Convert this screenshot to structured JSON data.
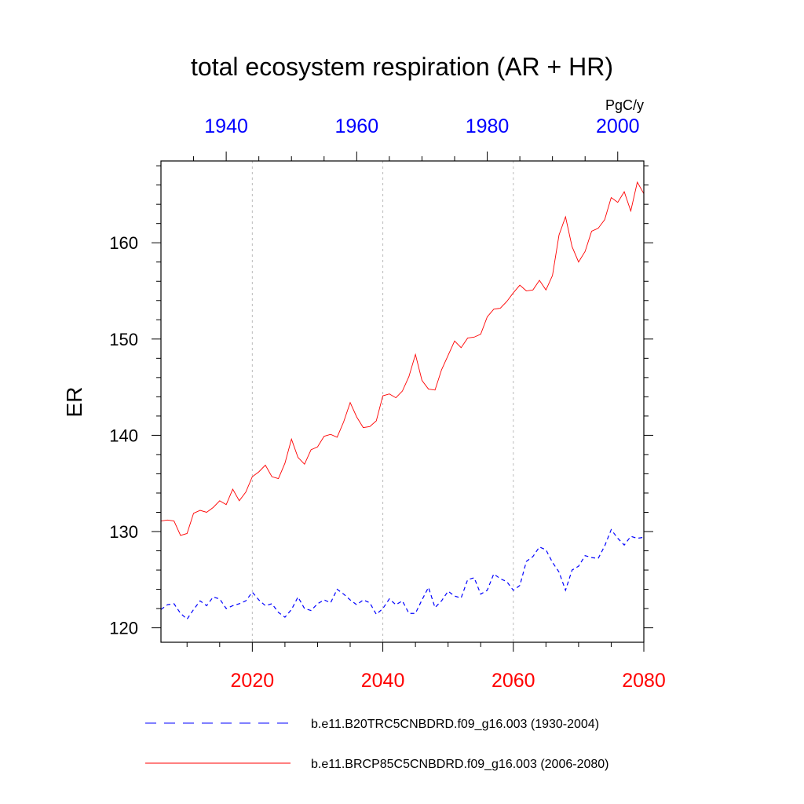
{
  "chart_data": {
    "type": "line",
    "title": "total ecosystem respiration (AR + HR)",
    "ylabel": "ER",
    "units": "PgC/y",
    "ylim": [
      118.5,
      168.5
    ],
    "yticks": [
      120,
      130,
      140,
      150,
      160
    ],
    "bottom_axis": {
      "color": "#ff0000",
      "range": [
        2006,
        2080
      ],
      "ticks": [
        2020,
        2040,
        2060,
        2080
      ]
    },
    "top_axis": {
      "color": "#0000ff",
      "range": [
        1930,
        2004
      ],
      "ticks": [
        1940,
        1960,
        1980,
        2000
      ]
    },
    "grid": {
      "vertical_dotted": true,
      "at_bottom_years": [
        2020,
        2040,
        2060
      ]
    },
    "legend_position": "bottom",
    "series": [
      {
        "name": "b.e11.B20TRC5CNBDRD.f09_g16.003 (1930-2004)",
        "axis": "top",
        "color": "#0000ff",
        "dash": "dashed",
        "x_start": 1930,
        "values": [
          121.9,
          122.4,
          122.5,
          121.5,
          120.9,
          121.9,
          122.8,
          122.3,
          123.2,
          123.0,
          122.0,
          122.3,
          122.5,
          122.8,
          123.7,
          122.9,
          122.3,
          122.5,
          121.6,
          121.1,
          121.9,
          123.2,
          122.0,
          121.8,
          122.5,
          122.9,
          122.6,
          124.0,
          123.5,
          122.9,
          122.4,
          122.9,
          122.6,
          121.4,
          122.0,
          123.0,
          122.4,
          122.8,
          121.5,
          121.5,
          122.9,
          124.2,
          122.1,
          122.8,
          123.8,
          123.3,
          123.1,
          125.0,
          125.2,
          123.5,
          123.9,
          125.6,
          125.1,
          124.8,
          123.9,
          124.4,
          126.9,
          127.4,
          128.4,
          128.1,
          126.8,
          125.8,
          123.9,
          126.0,
          126.4,
          127.5,
          127.3,
          127.2,
          128.5,
          130.2,
          129.3,
          128.6,
          129.5,
          129.3,
          129.4
        ]
      },
      {
        "name": "b.e11.BRCP85C5CNBDRD.f09_g16.003 (2006-2080)",
        "axis": "bottom",
        "color": "#ff0000",
        "dash": "solid",
        "x_start": 2006,
        "values": [
          131.1,
          131.2,
          131.1,
          129.6,
          129.8,
          131.9,
          132.2,
          132.0,
          132.5,
          133.2,
          132.8,
          134.4,
          133.2,
          134.1,
          135.7,
          136.2,
          136.9,
          135.7,
          135.5,
          137.1,
          139.6,
          137.7,
          137.0,
          138.5,
          138.8,
          139.9,
          140.1,
          139.8,
          141.4,
          143.4,
          141.9,
          140.8,
          140.9,
          141.5,
          144.1,
          144.3,
          143.9,
          144.6,
          146.1,
          148.4,
          145.7,
          144.8,
          144.7,
          146.8,
          148.3,
          149.8,
          149.1,
          150.1,
          150.2,
          150.5,
          152.3,
          153.1,
          153.2,
          153.9,
          154.8,
          155.6,
          155.0,
          155.1,
          156.1,
          155.1,
          156.6,
          160.8,
          162.7,
          159.6,
          158.0,
          159.1,
          161.2,
          161.5,
          162.4,
          164.7,
          164.2,
          165.3,
          163.3,
          166.3,
          165.1
        ]
      }
    ]
  }
}
